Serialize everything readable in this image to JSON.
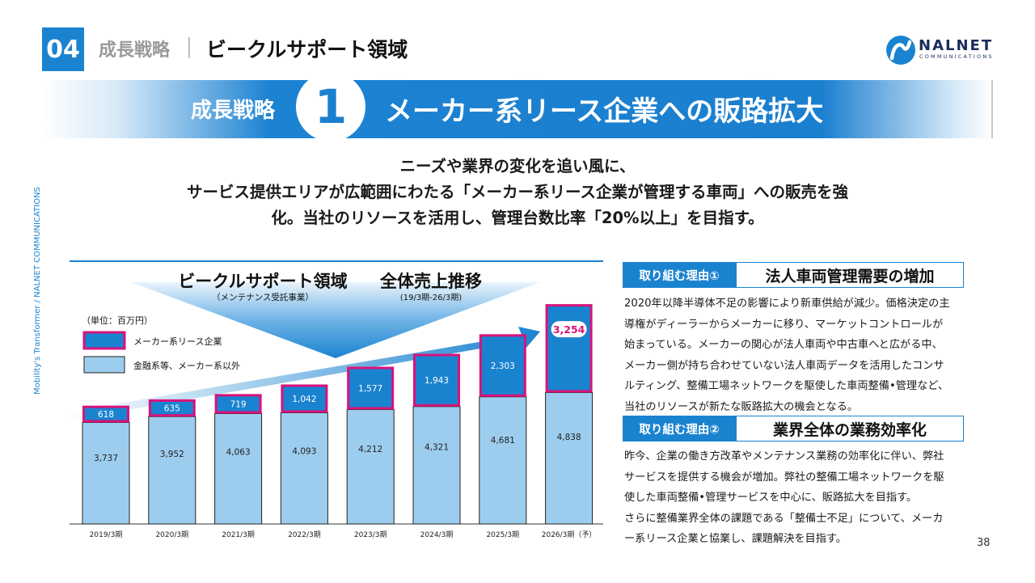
{
  "header": {
    "section_number": "04",
    "category": "成長戦略",
    "title": "ビークルサポート領域",
    "logo_name": "NALNET",
    "logo_sub": "COMMUNICATIONS"
  },
  "banner": {
    "label": "成長戦略",
    "number": "1",
    "title": "メーカー系リース企業への販路拡大"
  },
  "lead": {
    "line1": "ニーズや業界の変化を追い風に、",
    "line2": "サービス提供エリアが広範囲にわたる「メーカー系リース企業が管理する車両」への販売を強",
    "line3": "化。当社のリソースを活用し、管理台数比率「20%以上」を目指す。"
  },
  "side_text": "Mobility's Transformer / NALNET COMMUNICATIONS",
  "colors": {
    "accent": "#1a83d0",
    "lease_fill": "#1a83d0",
    "lease_border": "#d9127a",
    "other_fill": "#9dcdee"
  },
  "chart_data": {
    "type": "bar",
    "stacked": true,
    "title": "ビークルサポート領域",
    "title_note": "（メンテナンス受託事業）",
    "title2": "全体売上推移",
    "title2_note": "(19/3期-26/3期)",
    "unit_label": "（単位：百万円）",
    "categories": [
      "2019/3期",
      "2020/3期",
      "2021/3期",
      "2022/3期",
      "2023/3期",
      "2024/3期",
      "2025/3期",
      "2026/3期（予）"
    ],
    "series": [
      {
        "name": "金融系等、メーカー系以外",
        "values": [
          3737,
          3952,
          4063,
          4093,
          4212,
          4321,
          4681,
          4838
        ]
      },
      {
        "name": "メーカー系リース企業",
        "values": [
          618,
          635,
          719,
          1042,
          1577,
          1943,
          2303,
          3254
        ]
      }
    ],
    "value_labels": {
      "other": [
        "3,737",
        "3,952",
        "4,063",
        "4,093",
        "4,212",
        "4,321",
        "4,681",
        "4,838"
      ],
      "lease": [
        "618",
        "635",
        "719",
        "1,042",
        "1,577",
        "1,943",
        "2,303",
        "3,254"
      ]
    },
    "highlight_index": 7,
    "ylim": [
      0,
      8500
    ],
    "legend_position": "top-left",
    "grid": false
  },
  "reasons": [
    {
      "tag": "取り組む理由①",
      "heading": "法人車両管理需要の増加",
      "lines": [
        "2020年以降半導体不足の影響により新車供給が減少。価格決定の主",
        "導権がディーラーからメーカーに移り、マーケットコントロールが",
        "始まっている。メーカーの関心が法人車両や中古車へと広がる中、",
        "メーカー側が持ち合わせていない法人車両データを活用したコンサ",
        "ルティング、整備工場ネットワークを駆使した車両整備•管理など、",
        "当社のリソースが新たな販路拡大の機会となる。"
      ]
    },
    {
      "tag": "取り組む理由②",
      "heading": "業界全体の業務効率化",
      "lines": [
        "昨今、企業の働き方改革やメンテナンス業務の効率化に伴い、弊社",
        "サービスを提供する機会が増加。弊社の整備工場ネットワークを駆",
        "使した車両整備•管理サービスを中心に、販路拡大を目指す。",
        "さらに整備業界全体の課題である「整備士不足」について、メーカ",
        "ー系リース企業と協業し、課題解決を目指す。"
      ]
    }
  ],
  "page_number": "38"
}
